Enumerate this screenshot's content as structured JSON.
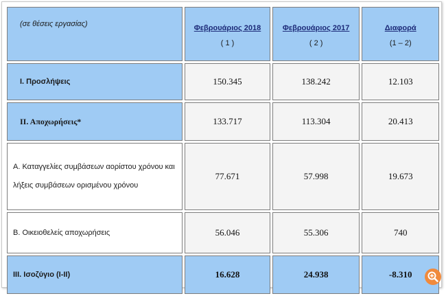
{
  "table": {
    "units_label": "(σε θέσεις εργασίας)",
    "columns": [
      {
        "title": "Φεβρουάριος 2018",
        "note": "( 1 )"
      },
      {
        "title": "Φεβρουάριος 2017",
        "note": "( 2 )"
      },
      {
        "title": "Διαφορά",
        "note": "(1 – 2)"
      }
    ],
    "rows": [
      {
        "label": "Ι. Προσλήψεις",
        "values": [
          "150.345",
          "138.242",
          "12.103"
        ]
      },
      {
        "label": "ΙΙ. Αποχωρήσεις*",
        "values": [
          "133.717",
          "113.304",
          "20.413"
        ]
      },
      {
        "label": "Α. Καταγγελίες συμβάσεων αορίστου χρόνου και λήξεις συμβάσεων ορισμένου χρόνου",
        "values": [
          "77.671",
          "57.998",
          "19.673"
        ]
      },
      {
        "label": "Β. Οικειοθελείς αποχωρήσεις",
        "values": [
          "56.046",
          "55.306",
          "740"
        ]
      },
      {
        "label": "ΙΙΙ. Ισοζύγιο (Ι-ΙΙ)",
        "values": [
          "16.628",
          "24.938",
          "-8.310"
        ]
      }
    ]
  },
  "zoom_icon": "magnifier-plus-icon",
  "colors": {
    "header_blue": "#9fcbf4",
    "zoom_orange": "#f08a3c"
  }
}
